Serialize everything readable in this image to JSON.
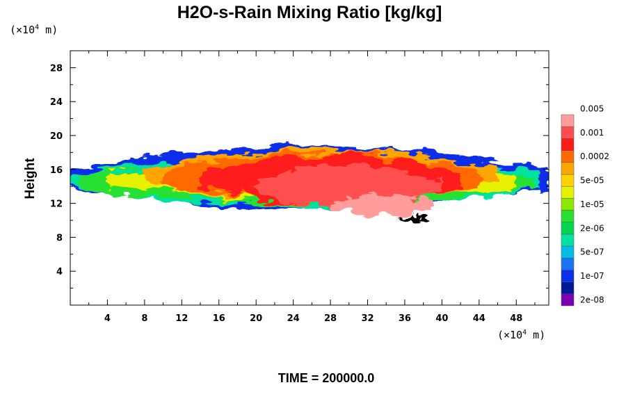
{
  "chart_data": {
    "type": "heatmap",
    "title": "H2O-s-Rain Mixing Ratio [kg/kg]",
    "xlabel": "",
    "ylabel": "Height",
    "x_unit_prefix": "(×10",
    "x_unit_exp": "4",
    "x_unit_suffix": " m)",
    "y_unit_prefix": "(×10",
    "y_unit_exp": "4",
    "y_unit_suffix": " m)",
    "xlim": [
      0,
      51.5
    ],
    "ylim": [
      0,
      30
    ],
    "x_ticks": [
      4,
      8,
      12,
      16,
      20,
      24,
      28,
      32,
      36,
      40,
      44,
      48
    ],
    "y_ticks": [
      4,
      8,
      12,
      16,
      20,
      24,
      28
    ],
    "x_tick_labels": [
      "4",
      "8",
      "12",
      "16",
      "20",
      "24",
      "28",
      "32",
      "36",
      "40",
      "44",
      "48"
    ],
    "y_tick_labels": [
      "4",
      "8",
      "12",
      "16",
      "20",
      "24",
      "28"
    ],
    "x_minor_step": 2,
    "y_minor_step": 2,
    "grid": false,
    "legend": {
      "position": "right",
      "colors": [
        "#7b00b4",
        "#001a96",
        "#0a2fe8",
        "#1a73f0",
        "#00bde8",
        "#00e0a0",
        "#00d450",
        "#28e030",
        "#8ce800",
        "#e6f000",
        "#ffd500",
        "#ffa500",
        "#ff6a00",
        "#ff1a1a",
        "#ff4f4f",
        "#ff9c9c"
      ],
      "labels": [
        "2e-08",
        "1e-07",
        "5e-07",
        "2e-06",
        "1e-05",
        "5e-05",
        "0.0002",
        "0.001",
        "0.005"
      ],
      "label_after_band": [
        1,
        3,
        5,
        7,
        9,
        11,
        13,
        15,
        17
      ]
    },
    "field": {
      "description_levels": "index into legend.colors; -1 = no rain",
      "regions": [
        {
          "level": 2,
          "x": [
            0,
            51.5
          ],
          "y_bottom": 11.2,
          "y_top": 18.8
        },
        {
          "level": 5,
          "x": [
            0.3,
            50.5
          ],
          "y_bottom": 11.6,
          "y_top": 17.6
        },
        {
          "level": 7,
          "x": [
            1,
            50
          ],
          "y_bottom": 12.0,
          "y_top": 17.0
        },
        {
          "level": 9,
          "x": [
            4,
            48
          ],
          "y_bottom": 12.4,
          "y_top": 17.2
        },
        {
          "level": 11,
          "x": [
            8,
            46
          ],
          "y_bottom": 12.2,
          "y_top": 18.4
        },
        {
          "level": 12,
          "x": [
            10,
            44
          ],
          "y_bottom": 12.0,
          "y_top": 18.0
        },
        {
          "level": 13,
          "x": [
            14,
            42
          ],
          "y_bottom": 11.8,
          "y_top": 17.8
        },
        {
          "level": 14,
          "x": [
            20,
            40
          ],
          "y_bottom": 11.5,
          "y_top": 16.5
        },
        {
          "level": 15,
          "x": [
            28,
            39
          ],
          "y_bottom": 10.5,
          "y_top": 13.0
        },
        {
          "level": 16,
          "x": [
            35.5,
            38.5
          ],
          "y_bottom": 9.8,
          "y_top": 10.6
        }
      ]
    }
  },
  "footer": {
    "time_label": "TIME = 200000.0"
  }
}
